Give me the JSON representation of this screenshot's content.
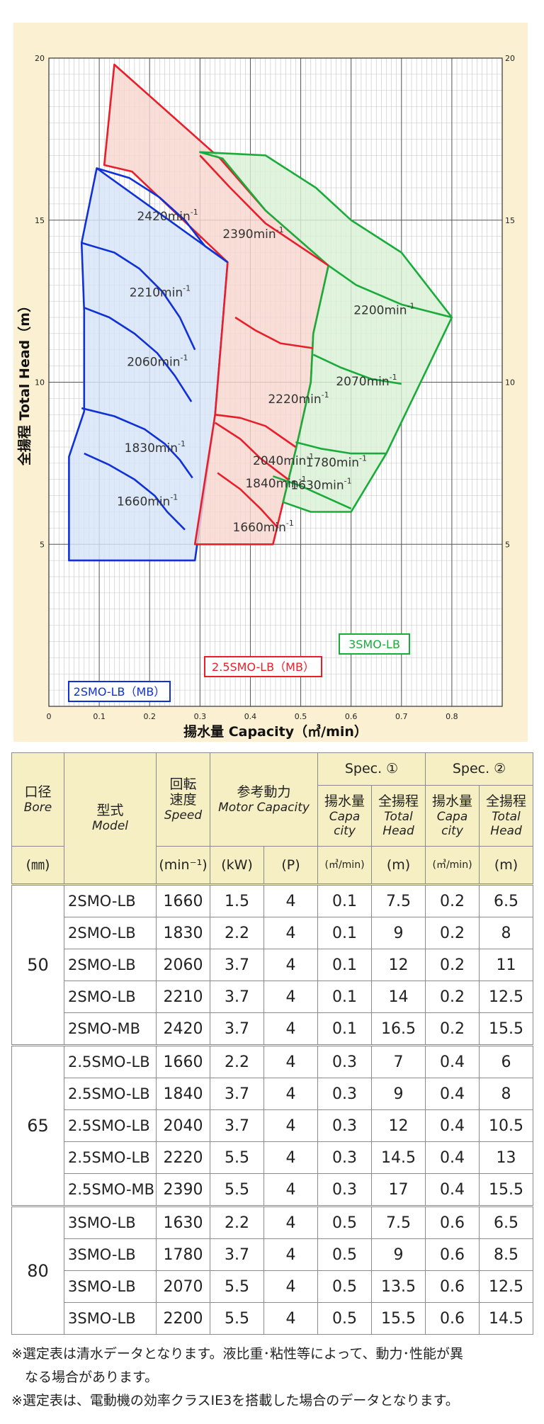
{
  "chart_data": {
    "type": "area",
    "xlabel": "揚水量 Capacity（㎥/min）",
    "ylabel": "全揚程 Total Head（m）",
    "xlim": [
      0,
      0.9
    ],
    "ylim": [
      0,
      20
    ],
    "x_ticks": [
      0,
      0.1,
      0.2,
      0.3,
      0.4,
      0.5,
      0.6,
      0.7,
      0.8
    ],
    "x_tick_labels": [
      "0",
      "0.1",
      "0.2",
      "0.3",
      "0.4",
      "0.5",
      "0.6",
      "0.7",
      "0.8"
    ],
    "y_ticks": [
      5,
      10,
      15,
      20
    ],
    "y_tick_labels": [
      "5",
      "10",
      "15",
      "20"
    ],
    "grid": true,
    "grid_style": "log-subdivided",
    "models": [
      {
        "name": "2SMO-LB（MB）",
        "color": "#1030d8",
        "fill": "#d6e4f6",
        "region": [
          [
            0.04,
            4.5
          ],
          [
            0.04,
            7.7
          ],
          [
            0.07,
            9.1
          ],
          [
            0.07,
            12.2
          ],
          [
            0.065,
            14.3
          ],
          [
            0.095,
            16.6
          ],
          [
            0.355,
            13.7
          ],
          [
            0.33,
            9
          ],
          [
            0.29,
            4.5
          ]
        ],
        "speed_lines": [
          {
            "label": "1660min-1",
            "points": [
              [
                0.07,
                7.8
              ],
              [
                0.12,
                7.45
              ],
              [
                0.17,
                7.0
              ],
              [
                0.21,
                6.5
              ],
              [
                0.235,
                6.0
              ],
              [
                0.27,
                5.45
              ]
            ],
            "label_at": [
              0.135,
              6.2
            ]
          },
          {
            "label": "1830min-1",
            "points": [
              [
                0.065,
                9.2
              ],
              [
                0.13,
                8.95
              ],
              [
                0.19,
                8.55
              ],
              [
                0.23,
                8.1
              ],
              [
                0.26,
                7.6
              ],
              [
                0.285,
                7.05
              ]
            ],
            "label_at": [
              0.15,
              7.85
            ]
          },
          {
            "label": "2060min-1",
            "points": [
              [
                0.07,
                12.3
              ],
              [
                0.12,
                12.0
              ],
              [
                0.17,
                11.5
              ],
              [
                0.215,
                10.9
              ],
              [
                0.25,
                10.2
              ],
              [
                0.283,
                9.4
              ]
            ],
            "label_at": [
              0.155,
              10.5
            ]
          },
          {
            "label": "2210min-1",
            "points": [
              [
                0.065,
                14.3
              ],
              [
                0.13,
                14.0
              ],
              [
                0.18,
                13.5
              ],
              [
                0.225,
                12.8
              ],
              [
                0.26,
                12.0
              ],
              [
                0.29,
                11.0
              ]
            ],
            "label_at": [
              0.16,
              12.65
            ]
          },
          {
            "label": "2420min-1",
            "points": [
              [
                0.095,
                16.6
              ],
              [
                0.16,
                16.3
              ],
              [
                0.22,
                15.7
              ],
              [
                0.27,
                15.0
              ],
              [
                0.31,
                14.2
              ],
              [
                0.355,
                13.7
              ]
            ],
            "label_at": [
              0.175,
              15.0
            ]
          }
        ]
      },
      {
        "name": "2.5SMO-LB（MB）",
        "color": "#e81e2a",
        "fill": "#f8d7d0",
        "region": [
          [
            0.29,
            5.0
          ],
          [
            0.445,
            5.0
          ],
          [
            0.465,
            6.3
          ],
          [
            0.49,
            7.9
          ],
          [
            0.52,
            10.0
          ],
          [
            0.525,
            11.5
          ],
          [
            0.555,
            13.6
          ],
          [
            0.43,
            15.3
          ],
          [
            0.34,
            16.9
          ],
          [
            0.13,
            19.8
          ],
          [
            0.11,
            16.7
          ],
          [
            0.165,
            16.5
          ],
          [
            0.355,
            13.7
          ],
          [
            0.33,
            9
          ]
        ],
        "speed_lines": [
          {
            "label": "1660min-1",
            "points": [
              [
                0.335,
                7.2
              ],
              [
                0.38,
                6.7
              ],
              [
                0.42,
                6.1
              ],
              [
                0.455,
                5.5
              ]
            ],
            "label_at": [
              0.365,
              5.4
            ]
          },
          {
            "label": "1840min-1",
            "points": [
              [
                0.33,
                8.75
              ],
              [
                0.38,
                8.25
              ],
              [
                0.42,
                7.65
              ],
              [
                0.475,
                7.0
              ]
            ],
            "label_at": [
              0.39,
              6.75
            ]
          },
          {
            "label": "2040min-1",
            "points": [
              [
                0.33,
                9.0
              ],
              [
                0.38,
                8.9
              ],
              [
                0.43,
                8.65
              ],
              [
                0.49,
                8.0
              ]
            ],
            "label_at": [
              0.405,
              7.45
            ]
          },
          {
            "label": "2220min-1",
            "points": [
              [
                0.37,
                12.0
              ],
              [
                0.41,
                11.6
              ],
              [
                0.46,
                11.2
              ],
              [
                0.525,
                11.05
              ]
            ],
            "label_at": [
              0.435,
              9.35
            ]
          },
          {
            "label": "2390min-1",
            "points": [
              [
                0.3,
                17.0
              ],
              [
                0.36,
                16.0
              ],
              [
                0.43,
                14.9
              ],
              [
                0.555,
                13.6
              ]
            ],
            "label_at": [
              0.345,
              14.45
            ]
          }
        ]
      },
      {
        "name": "3SMO-LB",
        "color": "#1aac3a",
        "fill": "#d9f0d6",
        "region": [
          [
            0.52,
            6.0
          ],
          [
            0.6,
            6.0
          ],
          [
            0.67,
            7.8
          ],
          [
            0.8,
            12.0
          ],
          [
            0.7,
            14.0
          ],
          [
            0.6,
            15.0
          ],
          [
            0.53,
            16.0
          ],
          [
            0.43,
            17.0
          ],
          [
            0.3,
            17.1
          ],
          [
            0.345,
            16.9
          ],
          [
            0.43,
            15.3
          ],
          [
            0.555,
            13.6
          ],
          [
            0.525,
            11.5
          ],
          [
            0.52,
            10.0
          ],
          [
            0.49,
            7.9
          ],
          [
            0.465,
            6.3
          ]
        ],
        "speed_lines": [
          {
            "label": "1630min-1",
            "points": [
              [
                0.445,
                7.1
              ],
              [
                0.5,
                6.8
              ],
              [
                0.55,
                6.45
              ],
              [
                0.6,
                6.1
              ]
            ],
            "label_at": [
              0.48,
              6.7
            ]
          },
          {
            "label": "1780min-1",
            "points": [
              [
                0.49,
                8.15
              ],
              [
                0.54,
                7.95
              ],
              [
                0.6,
                7.8
              ],
              [
                0.67,
                7.8
              ]
            ],
            "label_at": [
              0.51,
              7.4
            ]
          },
          {
            "label": "2070min-1",
            "points": [
              [
                0.525,
                10.85
              ],
              [
                0.58,
                10.45
              ],
              [
                0.64,
                10.1
              ],
              [
                0.7,
                9.95
              ]
            ],
            "label_at": [
              0.57,
              9.9
            ]
          },
          {
            "label": "2200min-1",
            "points": [
              [
                0.555,
                13.6
              ],
              [
                0.61,
                13.0
              ],
              [
                0.7,
                12.4
              ],
              [
                0.8,
                12.0
              ]
            ],
            "label_at": [
              0.605,
              12.1
            ]
          }
        ]
      }
    ],
    "legend": [
      {
        "label": "3SMO-LB",
        "color": "#1aac3a",
        "position": "right-bottom"
      },
      {
        "label": "2.5SMO-LB（MB）",
        "color": "#e81e2a",
        "position": "center-bottom"
      },
      {
        "label": "2SMO-LB（MB）",
        "color": "#1030d8",
        "position": "left-bottom"
      }
    ]
  },
  "table": {
    "headers": {
      "bore_jp": "口径",
      "bore_en": "Bore",
      "bore_unit": "(㎜)",
      "model_jp": "型式",
      "model_en": "Model",
      "speed_jp": "回転速度",
      "speed_en": "Speed",
      "speed_unit": "(min⁻¹)",
      "motor_jp": "参考動力",
      "motor_en": "Motor Capacity",
      "kw_unit": "(kW)",
      "p_unit": "(P)",
      "spec1": "Spec. ①",
      "spec2": "Spec. ②",
      "cap_jp": "揚水量",
      "cap_en": "Capa city",
      "cap_unit": "(㎥/min)",
      "head_jp": "全揚程",
      "head_en": "Total Head",
      "head_unit": "(m)"
    },
    "groups": [
      {
        "bore": "50",
        "rows": [
          [
            "2SMO-LB",
            "1660",
            "1.5",
            "4",
            "0.1",
            "7.5",
            "0.2",
            "6.5"
          ],
          [
            "2SMO-LB",
            "1830",
            "2.2",
            "4",
            "0.1",
            "9",
            "0.2",
            "8"
          ],
          [
            "2SMO-LB",
            "2060",
            "3.7",
            "4",
            "0.1",
            "12",
            "0.2",
            "11"
          ],
          [
            "2SMO-LB",
            "2210",
            "3.7",
            "4",
            "0.1",
            "14",
            "0.2",
            "12.5"
          ],
          [
            "2SMO-MB",
            "2420",
            "3.7",
            "4",
            "0.1",
            "16.5",
            "0.2",
            "15.5"
          ]
        ]
      },
      {
        "bore": "65",
        "rows": [
          [
            "2.5SMO-LB",
            "1660",
            "2.2",
            "4",
            "0.3",
            "7",
            "0.4",
            "6"
          ],
          [
            "2.5SMO-LB",
            "1840",
            "3.7",
            "4",
            "0.3",
            "9",
            "0.4",
            "8"
          ],
          [
            "2.5SMO-LB",
            "2040",
            "3.7",
            "4",
            "0.3",
            "12",
            "0.4",
            "10.5"
          ],
          [
            "2.5SMO-LB",
            "2220",
            "5.5",
            "4",
            "0.3",
            "14.5",
            "0.4",
            "13"
          ],
          [
            "2.5SMO-MB",
            "2390",
            "5.5",
            "4",
            "0.3",
            "17",
            "0.4",
            "15.5"
          ]
        ]
      },
      {
        "bore": "80",
        "rows": [
          [
            "3SMO-LB",
            "1630",
            "2.2",
            "4",
            "0.5",
            "7.5",
            "0.6",
            "6.5"
          ],
          [
            "3SMO-LB",
            "1780",
            "3.7",
            "4",
            "0.5",
            "9",
            "0.6",
            "8.5"
          ],
          [
            "3SMO-LB",
            "2070",
            "5.5",
            "4",
            "0.5",
            "13.5",
            "0.6",
            "12.5"
          ],
          [
            "3SMO-LB",
            "2200",
            "5.5",
            "4",
            "0.5",
            "15.5",
            "0.6",
            "14.5"
          ]
        ]
      }
    ]
  },
  "notes": [
    "※選定表は清水データとなります。液比重･粘性等によって、動力･性能が異",
    "　なる場合があります。",
    "※選定表は、電動機の効率クラスIE3を搭載した場合のデータとなります。"
  ]
}
